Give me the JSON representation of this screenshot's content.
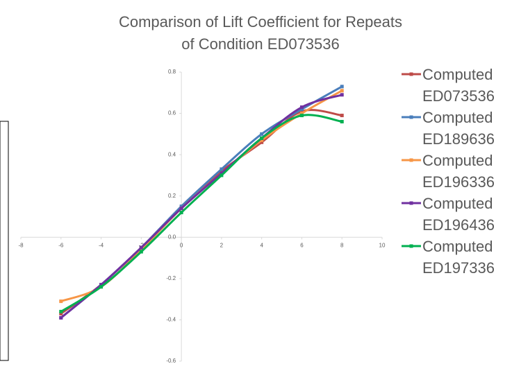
{
  "chart_data": {
    "type": "line",
    "title": "Comparison of Lift Coefficient for Repeats of Condition ED073536",
    "x": [
      -6,
      -4,
      -2,
      0,
      2,
      4,
      6,
      8
    ],
    "series": [
      {
        "name": "Computed ED073536",
        "color": "#be4b48",
        "values": [
          -0.37,
          -0.23,
          -0.05,
          0.14,
          0.32,
          0.46,
          0.61,
          0.59
        ]
      },
      {
        "name": "Computed ED189636",
        "color": "#4a7ebb",
        "values": [
          -0.39,
          -0.23,
          -0.05,
          0.15,
          0.33,
          0.5,
          0.62,
          0.73
        ]
      },
      {
        "name": "Computed ED196336",
        "color": "#f79646",
        "values": [
          -0.31,
          -0.24,
          -0.06,
          0.14,
          0.31,
          0.47,
          0.6,
          0.71
        ]
      },
      {
        "name": "Computed ED196436",
        "color": "#7030a0",
        "values": [
          -0.39,
          -0.23,
          -0.05,
          0.14,
          0.31,
          0.48,
          0.63,
          0.69
        ]
      },
      {
        "name": "Computed ED197336",
        "color": "#00b050",
        "values": [
          -0.36,
          -0.24,
          -0.07,
          0.12,
          0.3,
          0.48,
          0.59,
          0.56
        ]
      }
    ],
    "xlim": [
      -8,
      10
    ],
    "xticks": [
      -8,
      -6,
      -4,
      -2,
      0,
      2,
      4,
      6,
      8,
      10
    ],
    "ylim": [
      -0.6,
      0.8
    ],
    "yticks": [
      -0.6,
      -0.4,
      -0.2,
      {
        "value": 0,
        "label": "0.0"
      },
      0.2,
      0.4,
      0.6,
      0.8
    ],
    "legend": "right"
  }
}
